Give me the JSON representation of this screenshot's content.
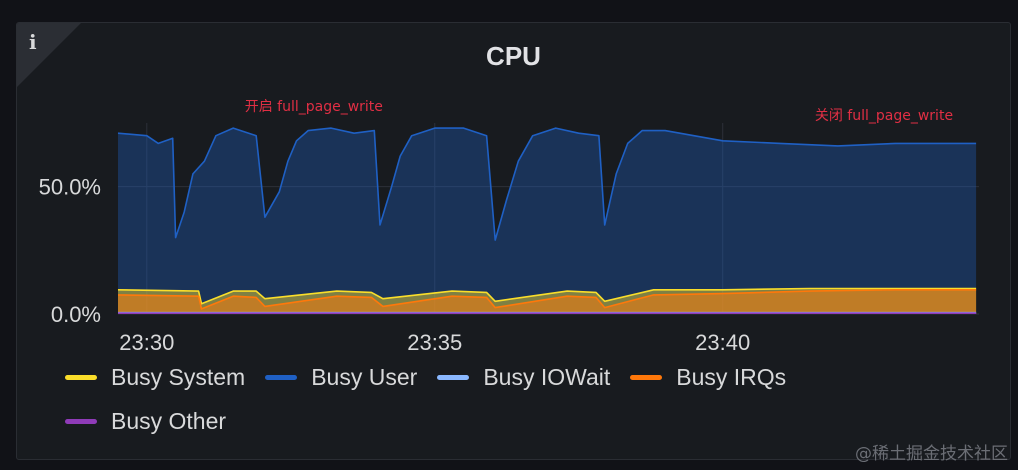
{
  "panel": {
    "title": "CPU",
    "info_icon": "info-icon"
  },
  "watermark": "@稀土掘金技术社区",
  "chart_data": {
    "type": "area",
    "title": "CPU",
    "x_ticks": [
      "23:30",
      "23:35",
      "23:40"
    ],
    "x_tick_minutes": [
      30,
      35,
      40
    ],
    "x_range_minutes": [
      29.5,
      44.45
    ],
    "y_ticks": [
      "0.0%",
      "50.0%"
    ],
    "y_tick_values": [
      0,
      50
    ],
    "ylim": [
      0,
      75
    ],
    "stacked": false,
    "grid": true,
    "legend_placement": "bottom",
    "annotations": [
      {
        "text": "开启 full_page_write",
        "x_minute": 32.9
      },
      {
        "text": "关闭 full_page_write",
        "x_minute": 42.8
      }
    ],
    "series": [
      {
        "name": "Busy System",
        "color": "#fade2a",
        "x": [
          29.5,
          30.9,
          30.95,
          31.5,
          31.9,
          32.05,
          33.3,
          33.9,
          34.1,
          35.3,
          35.9,
          36.05,
          37.3,
          37.8,
          37.95,
          38.8,
          40.0,
          41.5,
          43.0,
          44.4
        ],
        "y": [
          9.5,
          9.0,
          4.0,
          9.0,
          9.0,
          6.0,
          9.0,
          8.5,
          6.0,
          9.0,
          8.5,
          5.0,
          9.0,
          8.5,
          5.0,
          9.5,
          9.5,
          10.0,
          10.0,
          10.0
        ]
      },
      {
        "name": "Busy User",
        "color": "#1f60c4",
        "x": [
          29.5,
          30.0,
          30.2,
          30.45,
          30.5,
          30.65,
          30.8,
          31.0,
          31.2,
          31.5,
          31.9,
          32.05,
          32.3,
          32.45,
          32.6,
          32.8,
          33.2,
          33.6,
          33.95,
          34.05,
          34.25,
          34.4,
          34.6,
          35.0,
          35.5,
          35.9,
          36.05,
          36.25,
          36.45,
          36.7,
          37.1,
          37.5,
          37.85,
          37.95,
          38.15,
          38.35,
          38.6,
          39.0,
          39.5,
          40.0,
          41.0,
          42.0,
          43.0,
          44.4
        ],
        "y": [
          71,
          70,
          67,
          69,
          30,
          40,
          55,
          60,
          70,
          73,
          70,
          38,
          48,
          60,
          68,
          72,
          73,
          71,
          72,
          35,
          50,
          62,
          70,
          73,
          73,
          70,
          29,
          45,
          60,
          70,
          73,
          71,
          70,
          35,
          55,
          67,
          72,
          72,
          70,
          68,
          67,
          66,
          67,
          67
        ]
      },
      {
        "name": "Busy IOWait",
        "color": "#8ab8ff",
        "x": [
          29.5,
          44.4
        ],
        "y": [
          0.5,
          0.5
        ]
      },
      {
        "name": "Busy IRQs",
        "color": "#ff780a",
        "x": [
          29.5,
          30.9,
          30.95,
          31.5,
          31.9,
          32.05,
          33.3,
          33.9,
          34.1,
          35.3,
          35.9,
          36.05,
          37.3,
          37.8,
          37.95,
          38.8,
          40.0,
          41.5,
          43.0,
          44.4
        ],
        "y": [
          7.5,
          7.0,
          2.0,
          7.0,
          6.5,
          3.0,
          7.0,
          6.5,
          3.0,
          7.0,
          6.5,
          2.5,
          7.0,
          6.5,
          2.5,
          7.5,
          8.0,
          9.0,
          9.5,
          9.5
        ]
      },
      {
        "name": "Busy Other",
        "color": "#8f3bb8",
        "x": [
          29.5,
          44.4
        ],
        "y": [
          0.3,
          0.3
        ]
      }
    ]
  }
}
